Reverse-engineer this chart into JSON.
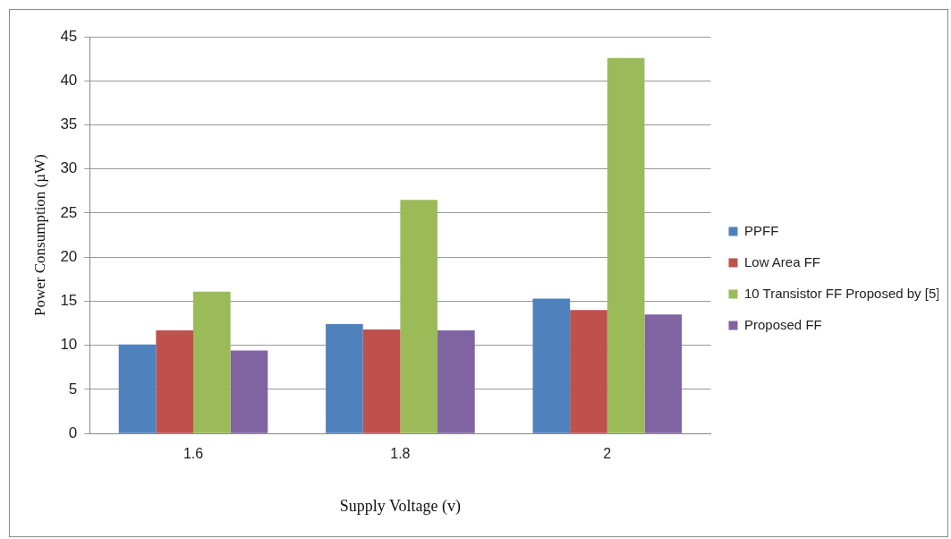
{
  "chart_data": {
    "type": "bar",
    "xlabel": "Supply Voltage (v)",
    "ylabel": "Power Consumption (µW)",
    "categories": [
      "1.6",
      "1.8",
      "2"
    ],
    "series": [
      {
        "name": "PPFF",
        "color": "#4f81bd",
        "values": [
          10.1,
          12.4,
          15.3
        ]
      },
      {
        "name": "Low Area FF",
        "color": "#c0504d",
        "values": [
          11.7,
          11.8,
          14.0
        ]
      },
      {
        "name": "10 Transistor FF Proposed by [5]",
        "color": "#9bbb59",
        "values": [
          16.1,
          26.5,
          42.6
        ]
      },
      {
        "name": "Proposed FF",
        "color": "#8064a2",
        "values": [
          9.4,
          11.7,
          13.5
        ]
      }
    ],
    "ylim": [
      0,
      45
    ],
    "yticks": [
      0,
      5,
      10,
      15,
      20,
      25,
      30,
      35,
      40,
      45
    ],
    "grid": "y",
    "legend": "right"
  }
}
